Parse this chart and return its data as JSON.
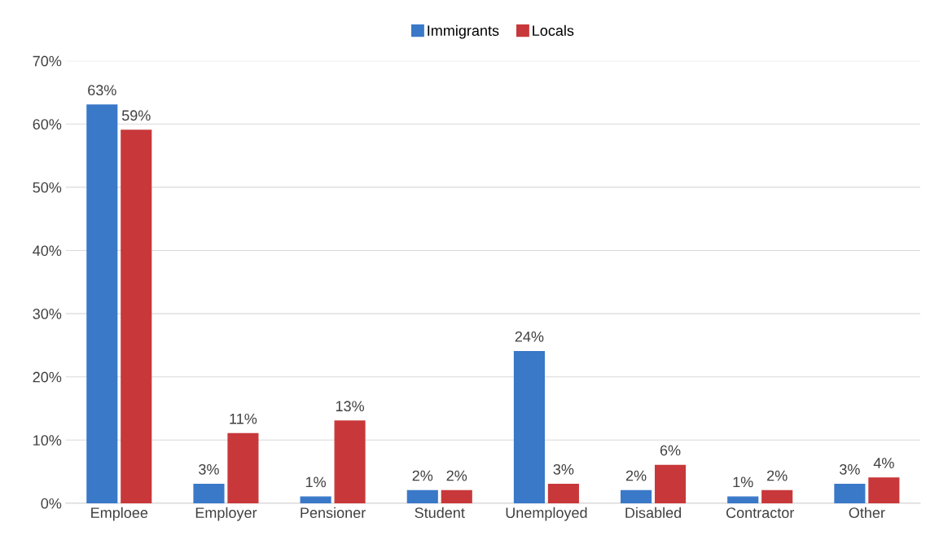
{
  "chart_data": {
    "type": "bar",
    "categories": [
      "Emploee",
      "Employer",
      "Pensioner",
      "Student",
      "Unemployed",
      "Disabled",
      "Contractor",
      "Other"
    ],
    "series": [
      {
        "name": "Immigrants",
        "color": "#3a78c8",
        "values": [
          63,
          3,
          1,
          2,
          24,
          2,
          1,
          3
        ],
        "value_labels": [
          "63%",
          "3%",
          "1%",
          "2%",
          "24%",
          "2%",
          "1%",
          "3%"
        ]
      },
      {
        "name": "Locals",
        "color": "#c8383a",
        "values": [
          59,
          11,
          13,
          2,
          3,
          6,
          2,
          4
        ],
        "value_labels": [
          "59%",
          "11%",
          "13%",
          "2%",
          "3%",
          "6%",
          "2%",
          "4%"
        ]
      }
    ],
    "ylim": [
      0,
      70
    ],
    "yticks": [
      {
        "value": 0,
        "label": "0%"
      },
      {
        "value": 10,
        "label": "10%"
      },
      {
        "value": 20,
        "label": "20%"
      },
      {
        "value": 30,
        "label": "30%"
      },
      {
        "value": 40,
        "label": "40%"
      },
      {
        "value": 50,
        "label": "50%"
      },
      {
        "value": 60,
        "label": "60%"
      },
      {
        "value": 70,
        "label": "70%"
      }
    ],
    "grid": "y",
    "legend": "top"
  }
}
